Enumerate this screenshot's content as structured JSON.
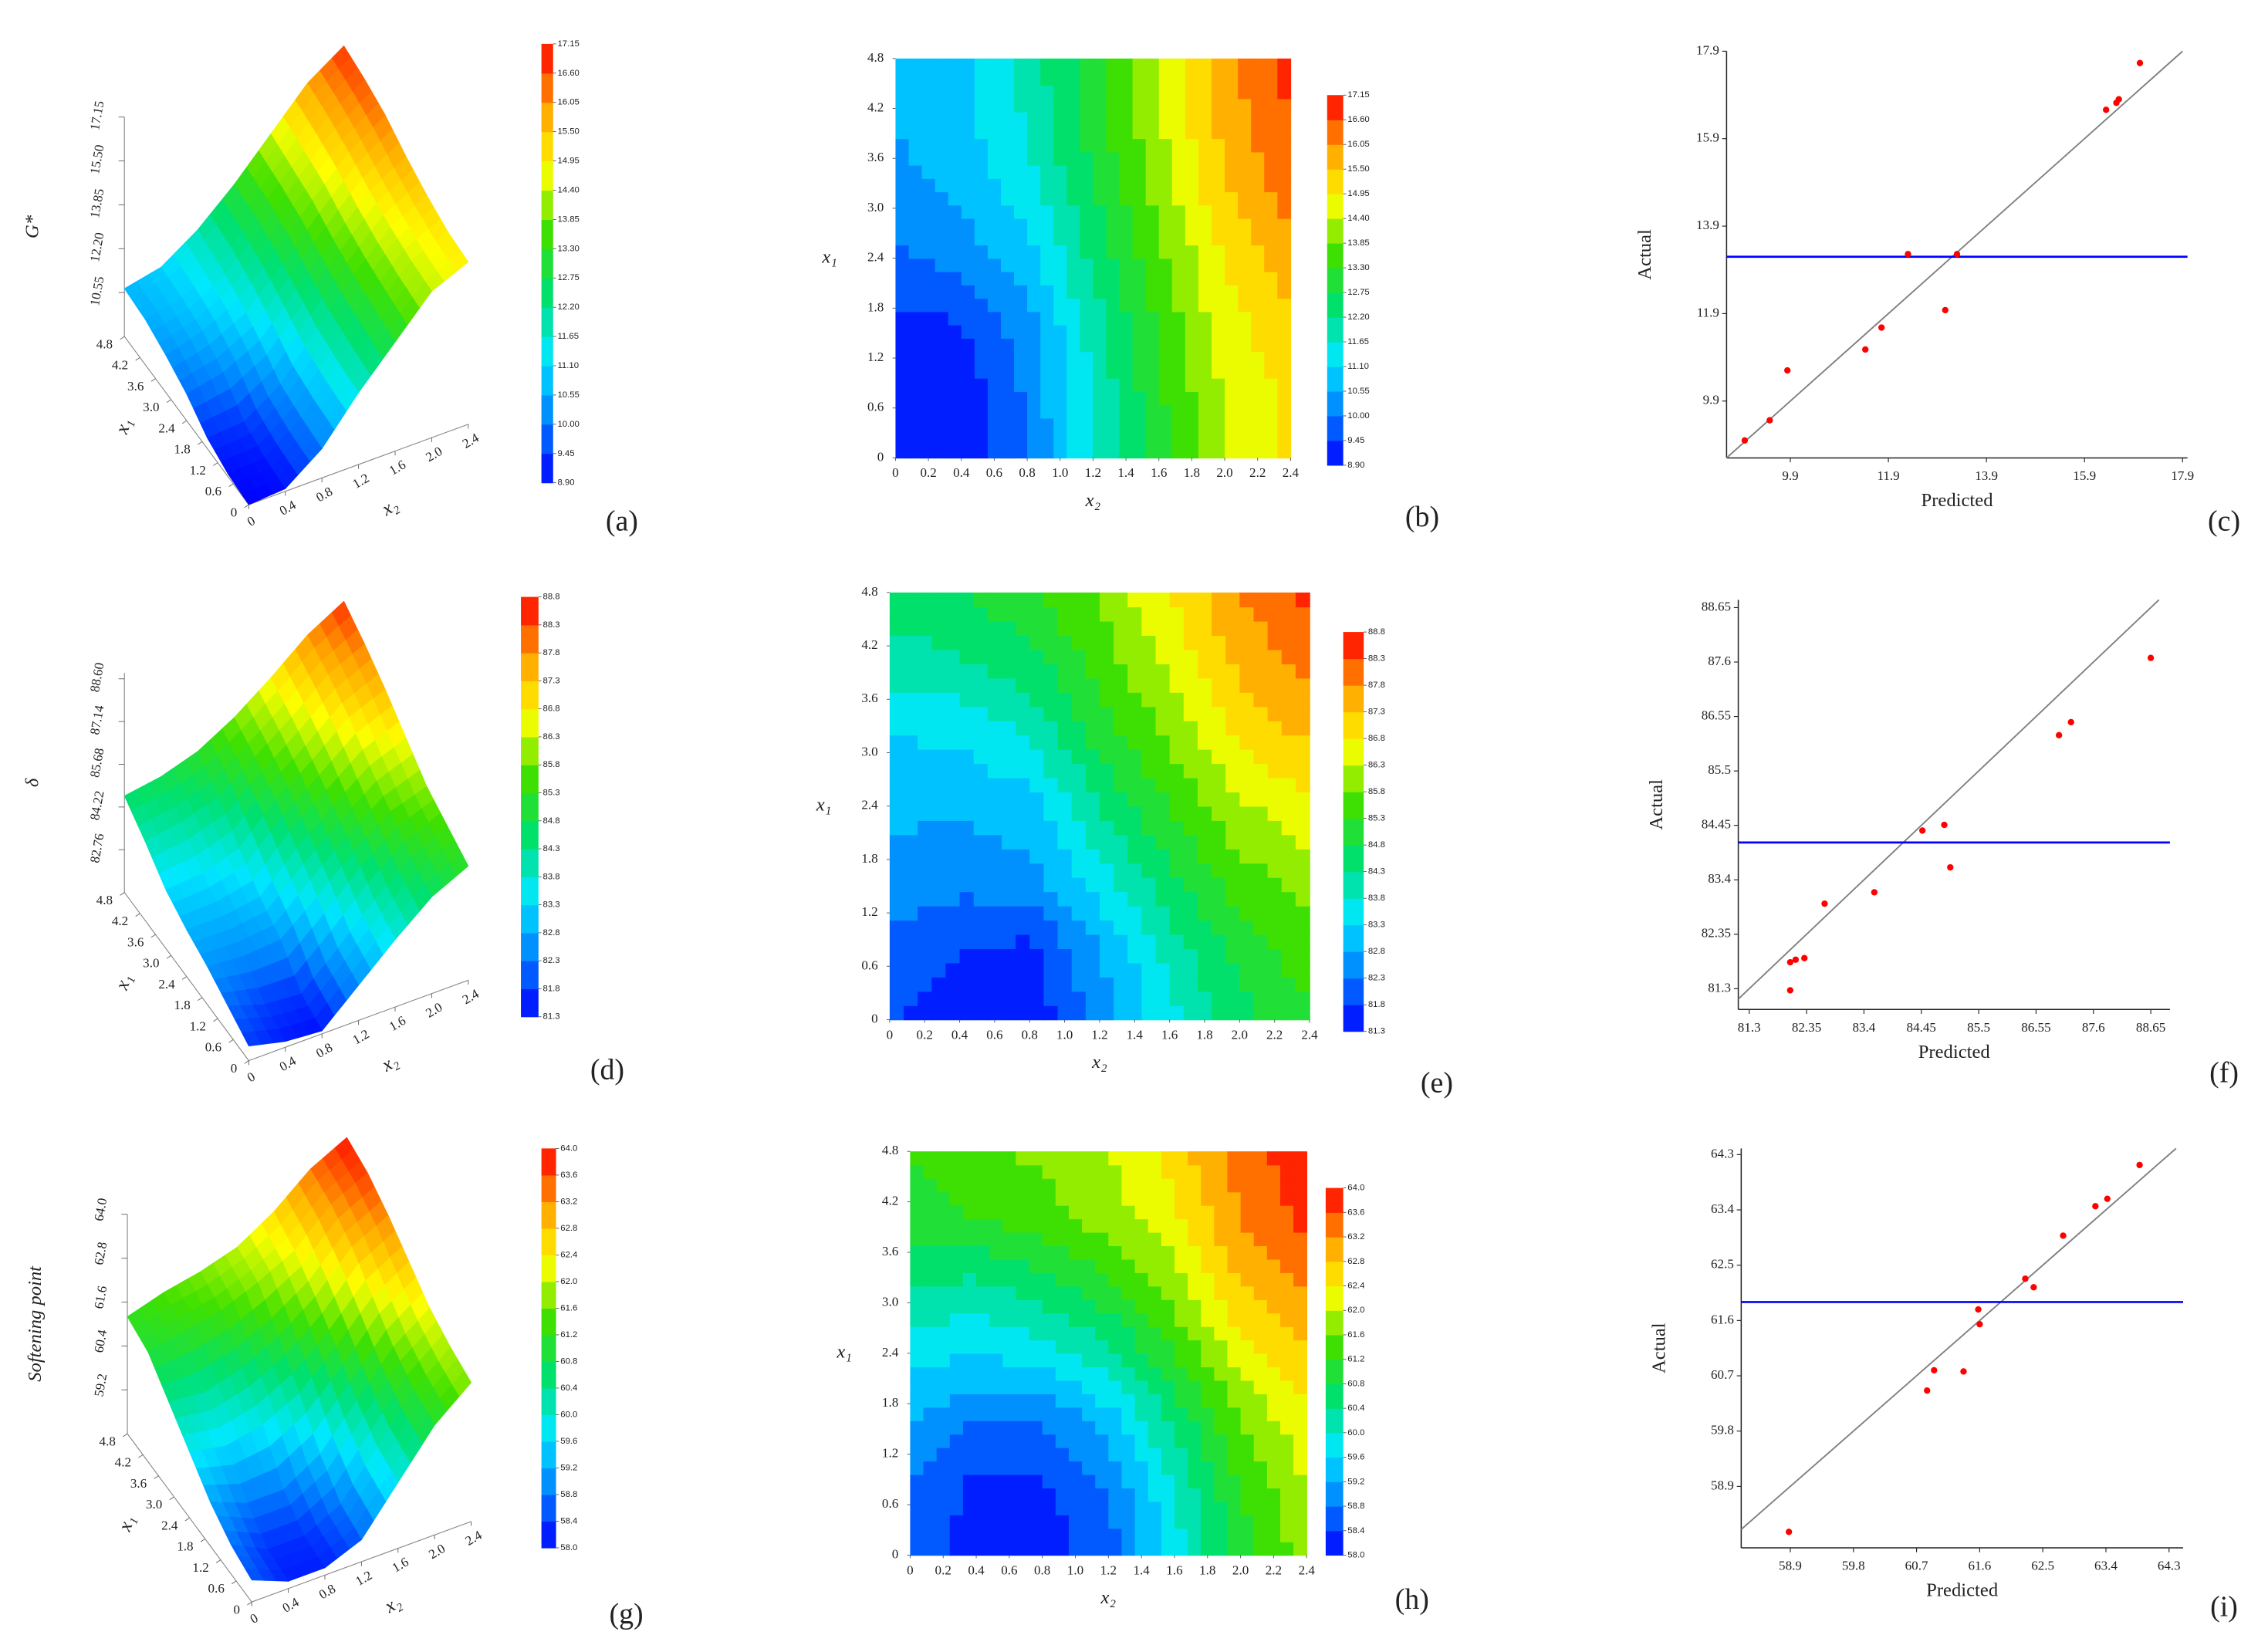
{
  "chart_data": [
    {
      "type": "surface",
      "label": "(a)",
      "zlabel": "G*",
      "xlabel": "x₂",
      "ylabel": "x₁",
      "x": [
        0,
        0.4,
        0.8,
        1.2,
        1.6,
        2.0,
        2.4
      ],
      "y": [
        0,
        0.8,
        1.6,
        2.4,
        3.2,
        4.0,
        4.8
      ],
      "z": [
        [
          8.9,
          9.0,
          10.0,
          11.6,
          13.0,
          14.4,
          15.0
        ],
        [
          9.0,
          9.1,
          10.1,
          11.7,
          13.2,
          14.5,
          15.1
        ],
        [
          9.3,
          9.4,
          10.3,
          11.9,
          13.4,
          14.7,
          15.4
        ],
        [
          9.9,
          10.2,
          10.9,
          12.3,
          13.7,
          15.0,
          15.8
        ],
        [
          10.3,
          10.7,
          11.4,
          12.7,
          14.1,
          15.4,
          16.3
        ],
        [
          10.6,
          10.9,
          11.7,
          13.0,
          14.3,
          15.7,
          16.6
        ],
        [
          10.7,
          11.0,
          11.9,
          13.1,
          14.5,
          15.9,
          16.8
        ]
      ],
      "xlim": [
        0,
        2.4
      ],
      "ylim": [
        0,
        4.8
      ],
      "zlim": [
        8.9,
        17.15
      ],
      "xticks": [
        0,
        0.4,
        0.8,
        1.2,
        1.6,
        {
          "value": 2,
          "label": "2.0"
        },
        2.4
      ],
      "yticks": [
        0,
        0.6,
        1.2,
        1.8,
        2.4,
        {
          "value": 3,
          "label": "3.0"
        },
        3.6,
        4.2,
        4.8
      ],
      "zticks": [
        10.55,
        {
          "value": 12.2,
          "label": "12.20"
        },
        13.85,
        {
          "value": 15.5,
          "label": "15.50"
        },
        17.15
      ],
      "colorbar_ticks": [
        {
          "value": 8.9,
          "label": "8.90"
        },
        9.45,
        {
          "value": 10,
          "label": "10.00"
        },
        10.55,
        {
          "value": 11.1,
          "label": "11.10"
        },
        11.65,
        {
          "value": 12.2,
          "label": "12.20"
        },
        12.75,
        {
          "value": 13.3,
          "label": "13.30"
        },
        13.85,
        {
          "value": 14.4,
          "label": "14.40"
        },
        14.95,
        {
          "value": 15.5,
          "label": "15.50"
        },
        16.05,
        {
          "value": 16.6,
          "label": "16.60"
        },
        17.15
      ],
      "colormap": [
        "#0000ff",
        "#0080ff",
        "#00e8ff",
        "#00e070",
        "#40e000",
        "#ffff00",
        "#ffa000",
        "#ff0000"
      ]
    },
    {
      "type": "contour",
      "label": "(b)",
      "xlabel": "x₂",
      "ylabel": "x₁",
      "x": [
        0,
        0.4,
        0.8,
        1.2,
        1.6,
        2.0,
        2.4
      ],
      "y": [
        0,
        0.8,
        1.6,
        2.4,
        3.2,
        4.0,
        4.8
      ],
      "z": [
        [
          8.9,
          9.0,
          10.0,
          11.6,
          13.0,
          14.4,
          15.0
        ],
        [
          9.0,
          9.1,
          10.1,
          11.7,
          13.2,
          14.5,
          15.1
        ],
        [
          9.3,
          9.4,
          10.3,
          11.9,
          13.4,
          14.7,
          15.4
        ],
        [
          9.9,
          10.2,
          10.9,
          12.3,
          13.7,
          15.0,
          15.8
        ],
        [
          10.3,
          10.7,
          11.4,
          12.7,
          14.1,
          15.4,
          16.3
        ],
        [
          10.6,
          10.9,
          11.7,
          13.0,
          14.3,
          15.7,
          16.6
        ],
        [
          10.7,
          11.0,
          11.9,
          13.1,
          14.5,
          15.9,
          16.8
        ]
      ],
      "xlim": [
        0,
        2.4
      ],
      "ylim": [
        0,
        4.8
      ],
      "xticks": [
        0,
        0.2,
        0.4,
        0.6,
        0.8,
        {
          "value": 1,
          "label": "1.0"
        },
        1.2,
        1.4,
        1.6,
        1.8,
        {
          "value": 2,
          "label": "2.0"
        },
        2.2,
        2.4
      ],
      "yticks": [
        0,
        0.6,
        1.2,
        1.8,
        2.4,
        {
          "value": 3,
          "label": "3.0"
        },
        3.6,
        4.2,
        4.8
      ],
      "colorbar_ticks": [
        {
          "value": 8.9,
          "label": "8.90"
        },
        9.45,
        {
          "value": 10,
          "label": "10.00"
        },
        10.55,
        {
          "value": 11.1,
          "label": "11.10"
        },
        11.65,
        {
          "value": 12.2,
          "label": "12.20"
        },
        12.75,
        {
          "value": 13.3,
          "label": "13.30"
        },
        13.85,
        {
          "value": 14.4,
          "label": "14.40"
        },
        14.95,
        {
          "value": 15.5,
          "label": "15.50"
        },
        16.05,
        {
          "value": 16.6,
          "label": "16.60"
        },
        17.15
      ],
      "colormap": [
        "#0000ff",
        "#0080ff",
        "#00e8ff",
        "#00e070",
        "#40e000",
        "#ffff00",
        "#ffa000",
        "#ff0000"
      ]
    },
    {
      "type": "scatter",
      "label": "(c)",
      "xlabel": "Predicted",
      "ylabel": "Actual",
      "x": [
        8.97,
        9.48,
        9.84,
        11.43,
        11.76,
        12.3,
        13.06,
        13.3,
        16.34,
        16.55,
        16.6,
        17.03
      ],
      "values": [
        9.0,
        9.46,
        10.6,
        11.08,
        11.58,
        13.26,
        11.98,
        13.26,
        16.56,
        16.72,
        16.8,
        17.63
      ],
      "color": "#ff0000",
      "hline": 13.2,
      "hline_color": "#0000ff",
      "diagonal": true,
      "diagonal_color": "#808080",
      "xlim": [
        8.6,
        18.0
      ],
      "ylim": [
        8.6,
        17.9
      ],
      "xticks": [
        9.9,
        11.9,
        13.9,
        15.9,
        17.9
      ],
      "yticks": [
        9.9,
        11.9,
        13.9,
        15.9,
        17.9
      ]
    },
    {
      "type": "surface",
      "label": "(d)",
      "zlabel": "δ",
      "xlabel": "x₂",
      "ylabel": "x₁",
      "x": [
        0,
        0.4,
        0.8,
        1.2,
        1.6,
        2.0,
        2.4
      ],
      "y": [
        0,
        0.8,
        1.6,
        2.4,
        3.2,
        4.0,
        4.8
      ],
      "z": [
        [
          81.8,
          81.5,
          81.4,
          82.5,
          83.6,
          84.6,
          85.2
        ],
        [
          82.2,
          81.8,
          81.7,
          82.8,
          84.0,
          85.0,
          85.6
        ],
        [
          82.6,
          82.5,
          82.6,
          83.6,
          84.7,
          85.6,
          86.0
        ],
        [
          82.9,
          82.9,
          83.1,
          84.3,
          85.3,
          86.2,
          86.7
        ],
        [
          83.3,
          83.4,
          83.8,
          85.0,
          85.9,
          86.9,
          87.4
        ],
        [
          84.0,
          84.2,
          84.6,
          85.5,
          86.4,
          87.4,
          88.0
        ],
        [
          84.6,
          84.8,
          85.2,
          85.9,
          86.8,
          87.8,
          88.5
        ]
      ],
      "xlim": [
        0,
        2.4
      ],
      "ylim": [
        0,
        4.8
      ],
      "zlim": [
        81.3,
        88.8
      ],
      "xticks": [
        0,
        0.4,
        0.8,
        1.2,
        1.6,
        {
          "value": 2,
          "label": "2.0"
        },
        2.4
      ],
      "yticks": [
        0,
        0.6,
        1.2,
        1.8,
        2.4,
        {
          "value": 3,
          "label": "3.0"
        },
        3.6,
        4.2,
        4.8
      ],
      "zticks": [
        82.76,
        84.22,
        85.68,
        87.14,
        {
          "value": 88.6,
          "label": "88.60"
        }
      ],
      "colorbar_ticks": [
        81.3,
        81.8,
        82.3,
        82.8,
        83.3,
        83.8,
        84.3,
        84.8,
        85.3,
        85.8,
        86.3,
        86.8,
        87.3,
        87.8,
        88.3,
        88.8
      ],
      "colormap": [
        "#0000ff",
        "#0080ff",
        "#00e8ff",
        "#00e070",
        "#40e000",
        "#ffff00",
        "#ffa000",
        "#ff0000"
      ]
    },
    {
      "type": "contour",
      "label": "(e)",
      "xlabel": "x₂",
      "ylabel": "x₁",
      "x": [
        0,
        0.4,
        0.8,
        1.2,
        1.6,
        2.0,
        2.4
      ],
      "y": [
        0,
        0.8,
        1.6,
        2.4,
        3.2,
        4.0,
        4.8
      ],
      "z": [
        [
          81.8,
          81.5,
          81.4,
          82.5,
          83.6,
          84.6,
          85.2
        ],
        [
          82.2,
          81.8,
          81.7,
          82.8,
          84.0,
          85.0,
          85.6
        ],
        [
          82.6,
          82.5,
          82.6,
          83.6,
          84.7,
          85.6,
          86.0
        ],
        [
          82.9,
          82.9,
          83.1,
          84.3,
          85.3,
          86.2,
          86.7
        ],
        [
          83.3,
          83.4,
          83.8,
          85.0,
          85.9,
          86.9,
          87.4
        ],
        [
          84.0,
          84.2,
          84.6,
          85.5,
          86.4,
          87.4,
          88.0
        ],
        [
          84.6,
          84.8,
          85.2,
          85.9,
          86.8,
          87.8,
          88.5
        ]
      ],
      "xlim": [
        0,
        2.4
      ],
      "ylim": [
        0,
        4.8
      ],
      "xticks": [
        0,
        0.2,
        0.4,
        0.6,
        0.8,
        {
          "value": 1,
          "label": "1.0"
        },
        1.2,
        1.4,
        1.6,
        1.8,
        {
          "value": 2,
          "label": "2.0"
        },
        2.2,
        2.4
      ],
      "yticks": [
        0,
        0.6,
        1.2,
        1.8,
        2.4,
        {
          "value": 3,
          "label": "3.0"
        },
        3.6,
        4.2,
        4.8
      ],
      "colorbar_ticks": [
        81.3,
        81.8,
        82.3,
        82.8,
        83.3,
        83.8,
        84.3,
        84.8,
        85.3,
        85.8,
        86.3,
        86.8,
        87.3,
        87.8,
        88.3,
        88.8
      ],
      "colormap": [
        "#0000ff",
        "#0080ff",
        "#00e8ff",
        "#00e070",
        "#40e000",
        "#ffff00",
        "#ffa000",
        "#ff0000"
      ]
    },
    {
      "type": "scatter",
      "label": "(f)",
      "xlabel": "Predicted",
      "ylabel": "Actual",
      "x": [
        82.05,
        82.15,
        82.31,
        82.05,
        82.68,
        83.59,
        84.47,
        84.87,
        84.98,
        86.97,
        87.19,
        88.65
      ],
      "values": [
        81.81,
        81.86,
        81.89,
        81.27,
        82.94,
        83.16,
        84.35,
        84.46,
        83.64,
        86.19,
        86.44,
        87.68
      ],
      "color": "#ff0000",
      "hline": 84.12,
      "hline_color": "#0000ff",
      "diagonal": true,
      "diagonal_color": "#808080",
      "xlim": [
        81.1,
        89.0
      ],
      "ylim": [
        80.9,
        88.8
      ],
      "xticks": [
        81.3,
        82.35,
        83.4,
        84.45,
        85.5,
        86.55,
        87.6,
        88.65
      ],
      "yticks": [
        81.3,
        82.35,
        83.4,
        84.45,
        85.5,
        86.55,
        87.6,
        88.65
      ]
    },
    {
      "type": "surface",
      "label": "(g)",
      "zlabel": "Softening point",
      "xlabel": "x₂",
      "ylabel": "x₁",
      "x": [
        0,
        0.4,
        0.8,
        1.2,
        1.6,
        2.0,
        2.4
      ],
      "y": [
        0,
        0.8,
        1.6,
        2.4,
        3.2,
        4.0,
        4.8
      ],
      "z": [
        [
          58.6,
          58.2,
          58.2,
          58.6,
          59.8,
          61.0,
          61.8
        ],
        [
          58.8,
          58.3,
          58.3,
          58.8,
          60.0,
          61.2,
          62.0
        ],
        [
          59.2,
          58.8,
          58.8,
          59.4,
          60.5,
          61.6,
          62.3
        ],
        [
          59.8,
          59.6,
          59.8,
          60.3,
          61.2,
          62.2,
          62.8
        ],
        [
          60.4,
          60.3,
          60.6,
          61.1,
          61.8,
          62.8,
          63.3
        ],
        [
          61.0,
          61.2,
          61.4,
          61.8,
          62.3,
          63.2,
          63.7
        ],
        [
          61.2,
          61.5,
          61.7,
          62.0,
          62.6,
          63.4,
          63.9
        ]
      ],
      "xlim": [
        0,
        2.4
      ],
      "ylim": [
        0,
        4.8
      ],
      "zlim": [
        58,
        64
      ],
      "xticks": [
        0,
        0.4,
        0.8,
        1.2,
        1.6,
        {
          "value": 2,
          "label": "2.0"
        },
        2.4
      ],
      "yticks": [
        0,
        0.6,
        1.2,
        1.8,
        2.4,
        {
          "value": 3,
          "label": "3.0"
        },
        3.6,
        4.2,
        4.8
      ],
      "zticks": [
        59.2,
        60.4,
        61.6,
        62.8,
        {
          "value": 64,
          "label": "64.0"
        }
      ],
      "colorbar_ticks": [
        {
          "value": 58,
          "label": "58.0"
        },
        58.4,
        58.8,
        59.2,
        59.6,
        {
          "value": 60,
          "label": "60.0"
        },
        60.4,
        60.8,
        61.2,
        61.6,
        {
          "value": 62,
          "label": "62.0"
        },
        62.4,
        62.8,
        63.2,
        63.6,
        {
          "value": 64,
          "label": "64.0"
        }
      ],
      "colormap": [
        "#0000ff",
        "#0080ff",
        "#00e8ff",
        "#00e070",
        "#40e000",
        "#ffff00",
        "#ffa000",
        "#ff0000"
      ]
    },
    {
      "type": "contour",
      "label": "(h)",
      "xlabel": "x₂",
      "ylabel": "x₁",
      "x": [
        0,
        0.4,
        0.8,
        1.2,
        1.6,
        2.0,
        2.4
      ],
      "y": [
        0,
        0.8,
        1.6,
        2.4,
        3.2,
        4.0,
        4.8
      ],
      "z": [
        [
          58.6,
          58.2,
          58.2,
          58.6,
          59.8,
          61.0,
          61.8
        ],
        [
          58.8,
          58.3,
          58.3,
          58.8,
          60.0,
          61.2,
          62.0
        ],
        [
          59.2,
          58.8,
          58.8,
          59.4,
          60.5,
          61.6,
          62.3
        ],
        [
          59.8,
          59.6,
          59.8,
          60.3,
          61.2,
          62.2,
          62.8
        ],
        [
          60.4,
          60.3,
          60.6,
          61.1,
          61.8,
          62.8,
          63.3
        ],
        [
          61.0,
          61.2,
          61.4,
          61.8,
          62.3,
          63.2,
          63.7
        ],
        [
          61.2,
          61.5,
          61.7,
          62.0,
          62.6,
          63.4,
          63.9
        ]
      ],
      "xlim": [
        0,
        2.4
      ],
      "ylim": [
        0,
        4.8
      ],
      "xticks": [
        0,
        0.2,
        0.4,
        0.6,
        0.8,
        {
          "value": 1,
          "label": "1.0"
        },
        1.2,
        1.4,
        1.6,
        1.8,
        {
          "value": 2,
          "label": "2.0"
        },
        2.2,
        2.4
      ],
      "yticks": [
        0,
        0.6,
        1.2,
        1.8,
        2.4,
        {
          "value": 3,
          "label": "3.0"
        },
        3.6,
        4.2,
        4.8
      ],
      "colorbar_ticks": [
        {
          "value": 58,
          "label": "58.0"
        },
        58.4,
        58.8,
        59.2,
        59.6,
        {
          "value": 60,
          "label": "60.0"
        },
        60.4,
        60.8,
        61.2,
        61.6,
        {
          "value": 62,
          "label": "62.0"
        },
        62.4,
        62.8,
        63.2,
        63.6,
        {
          "value": 64,
          "label": "64.0"
        }
      ],
      "colormap": [
        "#0000ff",
        "#0080ff",
        "#00e8ff",
        "#00e070",
        "#40e000",
        "#ffff00",
        "#ffa000",
        "#ff0000"
      ]
    },
    {
      "type": "scatter",
      "label": "(i)",
      "xlabel": "Predicted",
      "ylabel": "Actual",
      "x": [
        58.88,
        60.85,
        60.95,
        61.37,
        61.58,
        61.6,
        62.25,
        62.37,
        62.79,
        63.25,
        63.42,
        63.88
      ],
      "values": [
        58.16,
        60.46,
        60.79,
        60.77,
        61.78,
        61.54,
        62.28,
        62.14,
        62.98,
        63.46,
        63.58,
        64.13
      ],
      "color": "#ff0000",
      "hline": 61.9,
      "hline_color": "#0000ff",
      "diagonal": true,
      "diagonal_color": "#808080",
      "xlim": [
        58.2,
        64.5
      ],
      "ylim": [
        57.9,
        64.4
      ],
      "xticks": [
        58.9,
        59.8,
        60.7,
        61.6,
        62.5,
        63.4,
        64.3
      ],
      "yticks": [
        58.9,
        59.8,
        60.7,
        61.6,
        62.5,
        63.4,
        64.3
      ]
    }
  ]
}
